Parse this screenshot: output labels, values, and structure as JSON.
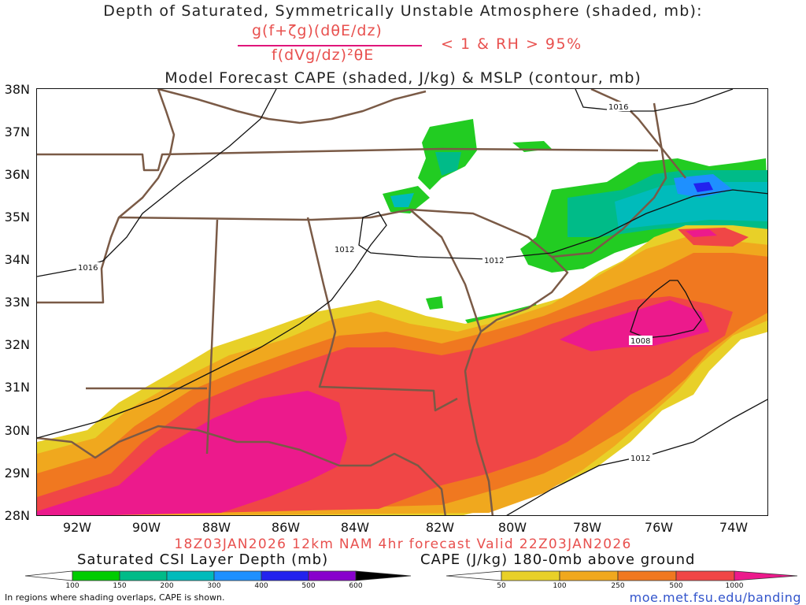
{
  "title_line1": "Depth of Saturated, Symmetrically Unstable Atmosphere (shaded, mb):",
  "formula_numerator": "g(f+ζg)(dθE/dz)",
  "formula_denominator": "f(dVg/dz)²θE",
  "criteria": "< 1 & RH > 95%",
  "title_line3": "Model Forecast CAPE (shaded, J/kg) & MSLP (contour, mb)",
  "lat_labels": [
    "38N",
    "37N",
    "36N",
    "35N",
    "34N",
    "33N",
    "32N",
    "31N",
    "30N",
    "29N",
    "28N"
  ],
  "lon_labels": [
    "92W",
    "90W",
    "88W",
    "86W",
    "84W",
    "82W",
    "80W",
    "78W",
    "76W",
    "74W"
  ],
  "isobar_labels": [
    "1016",
    "1016",
    "1012",
    "1012",
    "1008",
    "1012"
  ],
  "valid_line": "18Z03JAN2026 12km NAM 4hr forecast Valid 22Z03JAN2026",
  "csi_colorbar": {
    "title": "Saturated CSI Layer Depth (mb)",
    "ticks": [
      "100",
      "150",
      "200",
      "300",
      "400",
      "500",
      "600"
    ],
    "colors": [
      "#ffffff",
      "#00cc00",
      "#00bb88",
      "#00bbbb",
      "#1e90ff",
      "#2222ee",
      "#8800cc",
      "#000000"
    ]
  },
  "cape_colorbar": {
    "title": "CAPE (J/kg) 180-0mb above ground",
    "ticks": [
      "50",
      "100",
      "250",
      "500",
      "1000"
    ],
    "colors": [
      "#ffffff",
      "#e8d028",
      "#f0a81e",
      "#f07820",
      "#f04646",
      "#ec1a8c"
    ]
  },
  "note": "In regions where shading overlaps, CAPE is shown.",
  "source_url": "moe.met.fsu.edu/banding"
}
